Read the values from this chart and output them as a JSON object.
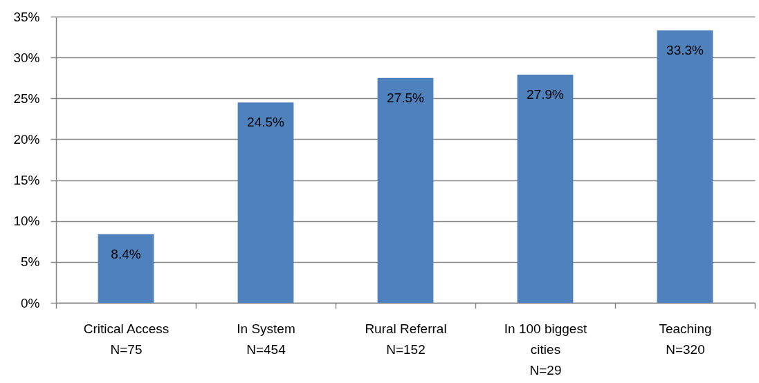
{
  "chart_data": {
    "type": "bar",
    "categories": [
      "Critical Access\nN=75",
      "In System\nN=454",
      "Rural Referral\nN=152",
      "In 100 biggest\ncities\nN=29",
      "Teaching\nN=320"
    ],
    "values": [
      8.4,
      24.5,
      27.5,
      27.9,
      33.3
    ],
    "value_labels": [
      "8.4%",
      "24.5%",
      "27.5%",
      "27.9%",
      "33.3%"
    ],
    "color": "#4f81bd",
    "ylim": [
      0,
      35
    ],
    "yticks": [
      {
        "value": 0,
        "label": "0%"
      },
      {
        "value": 5,
        "label": "5%"
      },
      {
        "value": 10,
        "label": "10%"
      },
      {
        "value": 15,
        "label": "15%"
      },
      {
        "value": 20,
        "label": "20%"
      },
      {
        "value": 25,
        "label": "25%"
      },
      {
        "value": 30,
        "label": "30%"
      },
      {
        "value": 35,
        "label": "35%"
      }
    ],
    "grid": "y"
  }
}
